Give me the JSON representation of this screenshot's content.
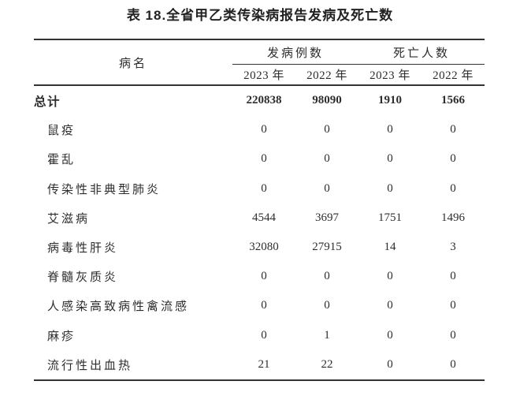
{
  "title": "表 18.全省甲乙类传染病报告发病及死亡数",
  "table": {
    "header": {
      "disease_col": "病名",
      "groups": [
        {
          "label": "发病例数",
          "years": [
            "2023 年",
            "2022 年"
          ]
        },
        {
          "label": "死亡人数",
          "years": [
            "2023 年",
            "2022 年"
          ]
        }
      ]
    },
    "rows": [
      {
        "name": "总计",
        "emphasis": true,
        "values": [
          "220838",
          "98090",
          "1910",
          "1566"
        ]
      },
      {
        "name": "鼠疫",
        "emphasis": false,
        "values": [
          "0",
          "0",
          "0",
          "0"
        ]
      },
      {
        "name": "霍乱",
        "emphasis": false,
        "values": [
          "0",
          "0",
          "0",
          "0"
        ]
      },
      {
        "name": "传染性非典型肺炎",
        "emphasis": false,
        "values": [
          "0",
          "0",
          "0",
          "0"
        ]
      },
      {
        "name": "艾滋病",
        "emphasis": false,
        "values": [
          "4544",
          "3697",
          "1751",
          "1496"
        ]
      },
      {
        "name": "病毒性肝炎",
        "emphasis": false,
        "values": [
          "32080",
          "27915",
          "14",
          "3"
        ]
      },
      {
        "name": "脊髓灰质炎",
        "emphasis": false,
        "values": [
          "0",
          "0",
          "0",
          "0"
        ]
      },
      {
        "name": "人感染高致病性禽流感",
        "emphasis": false,
        "values": [
          "0",
          "0",
          "0",
          "0"
        ]
      },
      {
        "name": "麻疹",
        "emphasis": false,
        "values": [
          "0",
          "1",
          "0",
          "0"
        ]
      },
      {
        "name": "流行性出血热",
        "emphasis": false,
        "values": [
          "21",
          "22",
          "0",
          "0"
        ]
      }
    ]
  },
  "colors": {
    "text": "#2d2d2d",
    "rule": "#333333",
    "background": "#ffffff"
  }
}
